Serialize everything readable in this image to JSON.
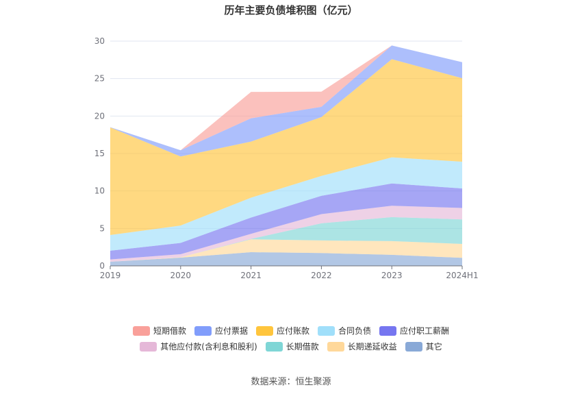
{
  "chart_data": {
    "type": "area",
    "stacked": true,
    "title": "历年主要负债堆积图（亿元）",
    "categories": [
      "2019",
      "2020",
      "2021",
      "2022",
      "2023",
      "2024H1"
    ],
    "ylim": [
      0,
      30
    ],
    "yticks": [
      0,
      5,
      10,
      15,
      20,
      25,
      30
    ],
    "grid": true,
    "legend_position": "bottom",
    "series": [
      {
        "name": "其它",
        "color": "#89a9d7",
        "values": [
          0.55,
          1.1,
          1.83,
          1.71,
          1.47,
          1.07
        ]
      },
      {
        "name": "长期递延收益",
        "color": "#ffd89a",
        "values": [
          0,
          0.06,
          1.71,
          1.68,
          1.83,
          1.86
        ]
      },
      {
        "name": "长期借款",
        "color": "#7fd6d6",
        "values": [
          0,
          0,
          0.06,
          2.29,
          3.21,
          3.27
        ]
      },
      {
        "name": "其他应付款(含利息和股利)",
        "color": "#e5b8d8",
        "values": [
          0.31,
          0.4,
          0.68,
          1.22,
          1.52,
          1.53
        ]
      },
      {
        "name": "应付职工薪酬",
        "color": "#7676f0",
        "values": [
          1.16,
          1.5,
          2.17,
          2.45,
          2.97,
          2.6
        ]
      },
      {
        "name": "合同负债",
        "color": "#a0dffa",
        "values": [
          2.1,
          2.32,
          2.65,
          2.65,
          3.48,
          3.57
        ]
      },
      {
        "name": "应付账款",
        "color": "#ffc53d",
        "values": [
          14.36,
          9.22,
          7.49,
          7.86,
          13.11,
          11.15
        ]
      },
      {
        "name": "应付票据",
        "color": "#819dfb",
        "values": [
          0.03,
          0.83,
          3.11,
          1.37,
          1.83,
          2.14
        ]
      },
      {
        "name": "短期借款",
        "color": "#f9a09a",
        "values": [
          0,
          0,
          3.52,
          2.02,
          0,
          0
        ]
      }
    ],
    "legend_rows": [
      [
        "短期借款",
        "应付票据",
        "应付账款",
        "合同负债",
        "应付职工薪酬"
      ],
      [
        "其他应付款(含利息和股利)",
        "长期借款",
        "长期递延收益",
        "其它"
      ]
    ]
  },
  "source": "数据来源：恒生聚源"
}
